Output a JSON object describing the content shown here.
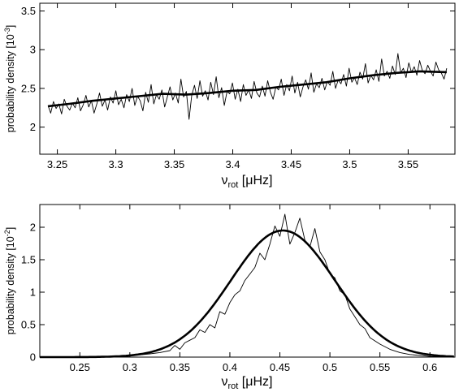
{
  "chart_data": [
    {
      "type": "line",
      "title": "",
      "xlabel": {
        "main": "ν",
        "sub": "rot",
        "unit": " [μHz]"
      },
      "ylabel": {
        "main": "probability density [10",
        "sup": "-3",
        "end": "]"
      },
      "xlim": [
        3.235,
        3.59
      ],
      "ylim": [
        1.65,
        3.6
      ],
      "xticks": [
        "3.25",
        "3.3",
        "3.35",
        "3.4",
        "3.45",
        "3.5",
        "3.55"
      ],
      "yticks": [
        "2",
        "2.5",
        "3",
        "3.5"
      ],
      "grid": false,
      "legend": "none",
      "series": [
        {
          "style": "thin-noisy",
          "x_start": 3.242,
          "x_end": 3.583,
          "values": [
            2.28,
            2.18,
            2.33,
            2.24,
            2.3,
            2.17,
            2.36,
            2.27,
            2.22,
            2.31,
            2.25,
            2.38,
            2.21,
            2.29,
            2.41,
            2.26,
            2.34,
            2.18,
            2.3,
            2.44,
            2.27,
            2.35,
            2.22,
            2.39,
            2.31,
            2.47,
            2.29,
            2.36,
            2.25,
            2.42,
            2.33,
            2.5,
            2.28,
            2.4,
            2.34,
            2.21,
            2.45,
            2.32,
            2.55,
            2.3,
            2.42,
            2.36,
            2.48,
            2.26,
            2.39,
            2.52,
            2.35,
            2.44,
            2.31,
            2.62,
            2.39,
            2.46,
            2.1,
            2.41,
            2.54,
            2.37,
            2.6,
            2.4,
            2.47,
            2.35,
            2.58,
            2.42,
            2.65,
            2.38,
            2.51,
            2.28,
            2.46,
            2.43,
            2.57,
            2.36,
            2.49,
            2.33,
            2.55,
            2.41,
            2.48,
            2.37,
            2.59,
            2.44,
            2.39,
            2.53,
            2.4,
            2.6,
            2.45,
            2.36,
            2.52,
            2.48,
            2.62,
            2.41,
            2.55,
            2.47,
            2.66,
            2.44,
            2.58,
            2.39,
            2.52,
            2.61,
            2.49,
            2.7,
            2.45,
            2.56,
            2.51,
            2.63,
            2.48,
            2.59,
            2.54,
            2.72,
            2.5,
            2.61,
            2.56,
            2.68,
            2.53,
            2.76,
            2.58,
            2.64,
            2.55,
            2.71,
            2.62,
            2.82,
            2.57,
            2.67,
            2.61,
            2.74,
            2.59,
            2.88,
            2.66,
            2.72,
            2.63,
            2.79,
            2.68,
            2.95,
            2.7,
            2.76,
            2.64,
            2.83,
            2.71,
            2.78,
            2.67,
            2.86,
            2.73,
            2.69,
            2.8,
            2.72,
            2.66,
            2.84,
            2.74,
            2.7,
            2.62,
            2.76
          ]
        },
        {
          "style": "thick-smooth",
          "x": [
            3.242,
            3.26,
            3.28,
            3.3,
            3.32,
            3.34,
            3.36,
            3.38,
            3.4,
            3.42,
            3.44,
            3.46,
            3.48,
            3.5,
            3.52,
            3.54,
            3.56,
            3.583
          ],
          "values": [
            2.27,
            2.3,
            2.34,
            2.37,
            2.4,
            2.43,
            2.42,
            2.44,
            2.47,
            2.48,
            2.52,
            2.55,
            2.58,
            2.63,
            2.67,
            2.7,
            2.72,
            2.71
          ]
        }
      ]
    },
    {
      "type": "line",
      "title": "",
      "xlabel": {
        "main": "ν",
        "sub": "rot",
        "unit": " [μHz]"
      },
      "ylabel": {
        "main": "probability density [10",
        "sup": "-2",
        "end": "]"
      },
      "xlim": [
        0.21,
        0.625
      ],
      "ylim": [
        0,
        2.35
      ],
      "xticks": [
        "0.25",
        "0.3",
        "0.35",
        "0.4",
        "0.45",
        "0.5",
        "0.55",
        "0.6"
      ],
      "yticks": [
        "0",
        "0.5",
        "1",
        "1.5",
        "2"
      ],
      "grid": false,
      "legend": "none",
      "series": [
        {
          "style": "thin-noisy",
          "x": [
            0.22,
            0.25,
            0.28,
            0.3,
            0.32,
            0.33,
            0.34,
            0.345,
            0.35,
            0.355,
            0.36,
            0.365,
            0.37,
            0.375,
            0.38,
            0.385,
            0.39,
            0.395,
            0.4,
            0.405,
            0.41,
            0.415,
            0.42,
            0.425,
            0.43,
            0.435,
            0.44,
            0.445,
            0.45,
            0.455,
            0.46,
            0.465,
            0.47,
            0.475,
            0.48,
            0.485,
            0.49,
            0.495,
            0.5,
            0.505,
            0.51,
            0.515,
            0.52,
            0.525,
            0.53,
            0.535,
            0.54,
            0.55,
            0.56,
            0.57,
            0.58,
            0.6,
            0.625
          ],
          "values": [
            0.0,
            0.0,
            0.01,
            0.02,
            0.05,
            0.07,
            0.1,
            0.18,
            0.12,
            0.22,
            0.26,
            0.3,
            0.42,
            0.38,
            0.5,
            0.45,
            0.7,
            0.66,
            0.84,
            0.96,
            1.02,
            1.18,
            1.28,
            1.38,
            1.6,
            1.5,
            1.74,
            2.02,
            1.86,
            2.2,
            1.74,
            1.92,
            2.14,
            1.8,
            1.7,
            1.98,
            1.62,
            1.5,
            1.28,
            1.22,
            1.02,
            0.96,
            0.74,
            0.62,
            0.5,
            0.44,
            0.3,
            0.2,
            0.12,
            0.07,
            0.04,
            0.01,
            0.0
          ]
        },
        {
          "style": "thick-smooth",
          "mean": 0.453,
          "sigma": 0.052,
          "peak": 1.95
        }
      ]
    }
  ]
}
